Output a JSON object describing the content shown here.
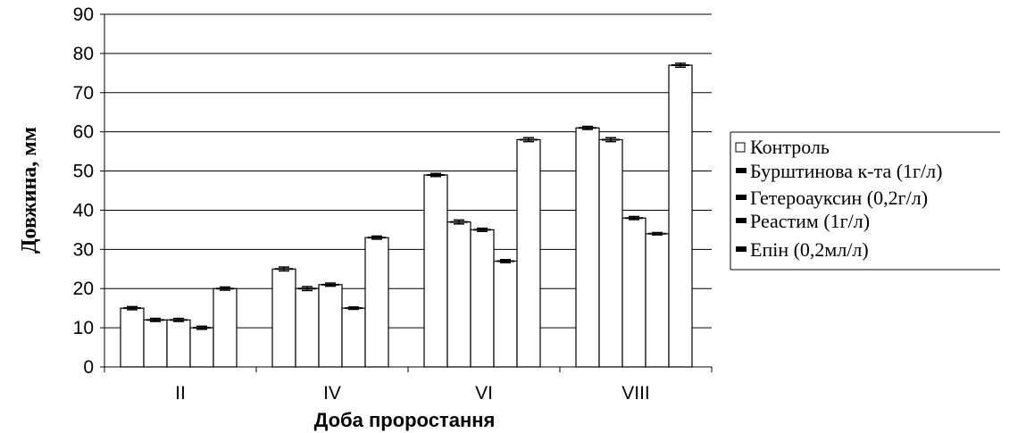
{
  "chart_data": {
    "type": "bar",
    "title": "",
    "xlabel": "Доба проростання",
    "ylabel": "Довжина, мм",
    "ylim": [
      0,
      90
    ],
    "yticks": [
      0,
      10,
      20,
      30,
      40,
      50,
      60,
      70,
      80,
      90
    ],
    "categories": [
      "II",
      "IV",
      "VI",
      "VIII"
    ],
    "grid": true,
    "legend_position": "right",
    "error_bars": true,
    "series": [
      {
        "name": "Контроль",
        "values": [
          15,
          25,
          49,
          61
        ],
        "errors": [
          0.4,
          0.5,
          0.4,
          0.4
        ]
      },
      {
        "name": "Бурштинова к-та (1г/л)",
        "values": [
          12,
          20,
          37,
          58
        ],
        "errors": [
          0.4,
          0.5,
          0.5,
          0.5
        ]
      },
      {
        "name": "Гетероауксин (0,2г/л)",
        "values": [
          12,
          21,
          35,
          38
        ],
        "errors": [
          0.4,
          0.4,
          0.4,
          0.4
        ]
      },
      {
        "name": "Реастим (1г/л)",
        "values": [
          10,
          15,
          27,
          34
        ],
        "errors": [
          0.4,
          0.3,
          0.4,
          0.3
        ]
      },
      {
        "name": "Епін (0,2мл/л)",
        "values": [
          20,
          33,
          58,
          77
        ],
        "errors": [
          0.4,
          0.4,
          0.5,
          0.5
        ]
      }
    ],
    "colors": {
      "bar_fill": "#ffffff",
      "bar_stroke": "#000000",
      "grid": "#000000"
    }
  }
}
